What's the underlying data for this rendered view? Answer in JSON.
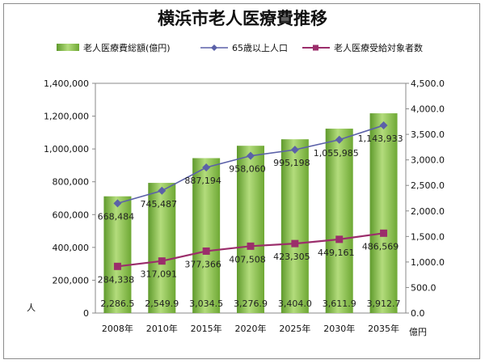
{
  "chart_data": {
    "type": "bar",
    "title": "横浜市老人医療費推移",
    "categories": [
      "2008年",
      "2010年",
      "2015年",
      "2020年",
      "2025年",
      "2030年",
      "2035年"
    ],
    "left_axis": {
      "unit_label": "人",
      "range": [
        0,
        1400000
      ],
      "ticks": [
        "0",
        "200,000",
        "400,000",
        "600,000",
        "800,000",
        "1,000,000",
        "1,200,000",
        "1,400,000"
      ]
    },
    "right_axis": {
      "unit_label": "億円",
      "range": [
        0,
        4500
      ],
      "ticks": [
        "0.0",
        "500.0",
        "1,000.0",
        "1,500.0",
        "2,000.0",
        "2,500.0",
        "3,000.0",
        "3,500.0",
        "4,000.0",
        "4,500.0"
      ]
    },
    "series": [
      {
        "name": "老人医療費総額(億円)",
        "type": "bar",
        "axis": "right",
        "color": "#8cc152",
        "values": [
          2286.5,
          2549.9,
          3034.5,
          3276.9,
          3404.0,
          3611.9,
          3912.7
        ],
        "labels": [
          "2,286.5",
          "2,549.9",
          "3,034.5",
          "3,276.9",
          "3,404.0",
          "3,611.9",
          "3,912.7"
        ]
      },
      {
        "name": "65歳以上人口",
        "type": "line",
        "axis": "left",
        "color": "#5b61a8",
        "marker": "diamond",
        "values": [
          668484,
          745487,
          887194,
          958060,
          995198,
          1055985,
          1143933
        ],
        "labels": [
          "668,484",
          "745,487",
          "887,194",
          "958,060",
          "995,198",
          "1,055,985",
          "1,143,933"
        ]
      },
      {
        "name": "老人医療受給対象者数",
        "type": "line",
        "axis": "left",
        "color": "#9b2e6b",
        "marker": "square",
        "values": [
          284338,
          317091,
          377366,
          407508,
          423305,
          449161,
          486569
        ],
        "labels": [
          "284,338",
          "317,091",
          "377,366",
          "407,508",
          "423,305",
          "449,161",
          "486,569"
        ]
      }
    ],
    "legend_position": "top",
    "grid": false
  }
}
